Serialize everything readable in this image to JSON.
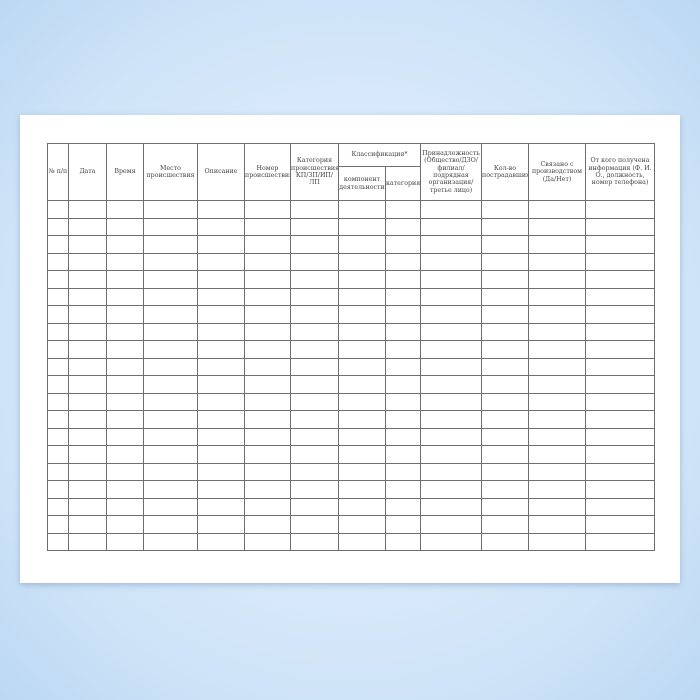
{
  "form": {
    "headers": {
      "num": "№ п/п",
      "date": "Дата",
      "time": "Время",
      "place": "Место происшествия",
      "description": "Описание",
      "incident_number": "Номер происшествия",
      "category": "Категория происшествия КП/ЗП/ИП/ЛП",
      "classification": "Классификация*",
      "component": "компонент деятельности",
      "class_category": "категория",
      "affiliation": "Принадлежность (Общество/ДЗО/ филиал/ подрядная организация/ третье лицо)",
      "victims": "Кол-во пострадавших",
      "production_related": "Связано с производством (Да/Нет)",
      "informant": "От кого получена информация (Ф. И. О., должность, номер телефона)"
    },
    "empty_rows": 20
  },
  "colors": {
    "background": "#cfe4f8",
    "sheet": "#ffffff",
    "lines": "#6e6e6e"
  }
}
